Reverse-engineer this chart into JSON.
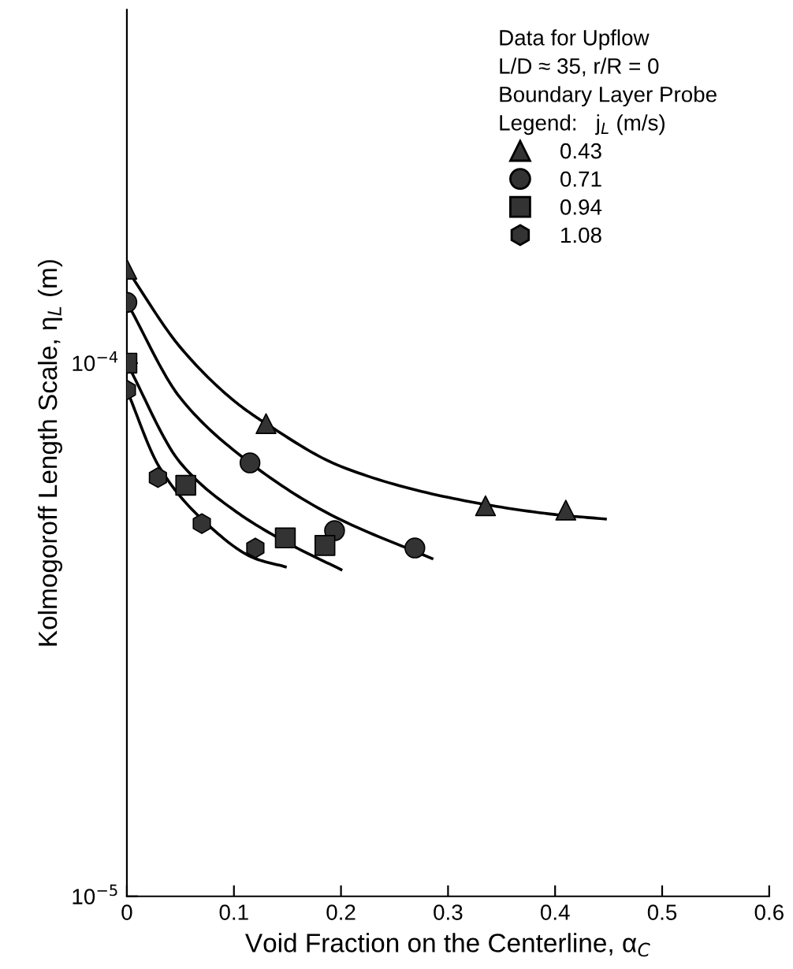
{
  "chart_data": {
    "type": "scatter",
    "xlabel": "Void Fraction on the Centerline, α$_{C}$",
    "ylabel": "Kolmogoroff Length Scale, η$_{L}$ (m)",
    "legend_title": "Data for Upflow\nL/D ≈ 35, r/R = 0\nBoundary Layer Probe\nLegend:   j$_{L}$ (m/s)",
    "log": "y",
    "xlim": [
      0,
      0.6
    ],
    "xticks": [
      0,
      0.1,
      0.2,
      0.3,
      0.4,
      0.5,
      0.6
    ],
    "ylim": [
      1e-05,
      0.00046
    ],
    "yticks": [
      {
        "value": 1e-05,
        "label": "10$^{−5}$"
      },
      {
        "value": 0.0001,
        "label": "10$^{−4}$"
      }
    ],
    "grid": false,
    "legend": "top right",
    "series": [
      {
        "name": "0.43",
        "marker": "triangle",
        "color": "#333333",
        "x": [
          0,
          0.13,
          0.335,
          0.41
        ],
        "values": [
          0.00015,
          7.7e-05,
          5.4e-05,
          5.3e-05
        ]
      },
      {
        "name": "0.71",
        "marker": "circle",
        "color": "#333333",
        "x": [
          0,
          0.115,
          0.194,
          0.269
        ],
        "values": [
          0.00013,
          6.5e-05,
          4.85e-05,
          4.5e-05
        ]
      },
      {
        "name": "0.94",
        "marker": "square",
        "color": "#333333",
        "x": [
          0,
          0.055,
          0.148,
          0.185
        ],
        "values": [
          0.0001,
          5.9e-05,
          4.7e-05,
          4.55e-05
        ]
      },
      {
        "name": "1.08",
        "color": "#333333",
        "x": [
          0,
          0.029,
          0.07,
          0.12
        ],
        "values": [
          8.9e-05,
          6.1e-05,
          5e-05,
          4.5e-05
        ]
      },
      {
        "type": "line",
        "color": "#000000",
        "x": [
          0,
          0.05,
          0.1,
          0.13,
          0.2,
          0.3,
          0.4,
          0.447
        ],
        "values": [
          0.00015,
          0.000107,
          8.5e-05,
          7.7e-05,
          6.4e-05,
          5.6e-05,
          5.2e-05,
          5.1e-05
        ]
      },
      {
        "type": "line",
        "color": "#000000",
        "x": [
          0,
          0.05,
          0.115,
          0.19,
          0.285
        ],
        "values": [
          0.00013,
          8.6e-05,
          6.5e-05,
          5.2e-05,
          4.3e-05
        ]
      },
      {
        "type": "line",
        "color": "#000000",
        "x": [
          0,
          0.05,
          0.1,
          0.15,
          0.2
        ],
        "values": [
          0.0001,
          6.5e-05,
          5.3e-05,
          4.6e-05,
          4.1e-05
        ]
      },
      {
        "type": "line",
        "color": "#000000",
        "x": [
          0,
          0.03,
          0.07,
          0.12,
          0.148
        ],
        "values": [
          8.9e-05,
          6.4e-05,
          5.1e-05,
          4.3e-05,
          4.15e-05
        ]
      }
    ]
  }
}
